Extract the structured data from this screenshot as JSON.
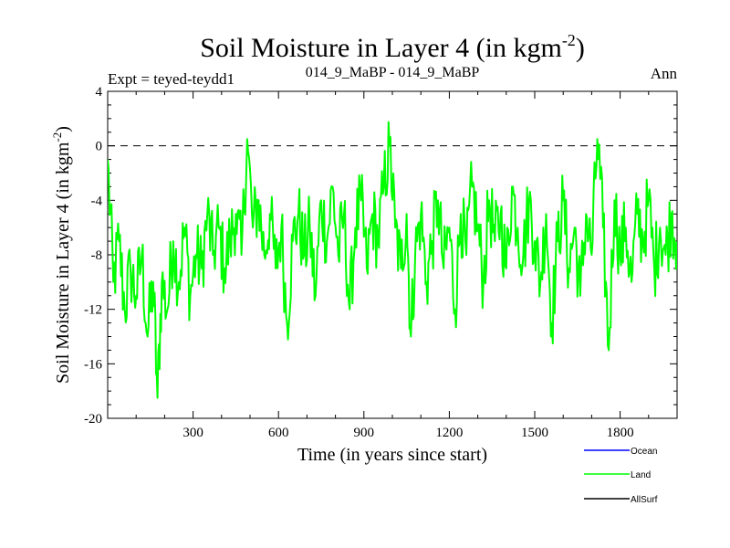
{
  "chart_data": {
    "type": "line",
    "title": "Soil Moisture in Layer 4 (in kgm",
    "title_sup": "-2",
    "title_close": ")",
    "subtitle_left": "Expt = teyed-teydd1",
    "subtitle_center": "014_9_MaBP - 014_9_MaBP",
    "subtitle_right": "Ann",
    "xlabel": "Time (in years since start)",
    "ylabel": "Soil Moisture in Layer 4 (in kgm",
    "ylabel_sup": "-2",
    "ylabel_close": ")",
    "xlim": [
      0,
      2000
    ],
    "ylim": [
      -20,
      4
    ],
    "x_ticks": [
      300,
      600,
      900,
      1200,
      1500,
      1800
    ],
    "x_tick_labels": [
      "300",
      "600",
      "900",
      "1200",
      "1500",
      "1800"
    ],
    "y_ticks": [
      4,
      0,
      -4,
      -8,
      -12,
      -16,
      -20
    ],
    "y_tick_labels": [
      "4",
      "0",
      "-4",
      "-8",
      "-12",
      "-16",
      "-20"
    ],
    "reference_line": {
      "y": 0,
      "style": "dashed"
    },
    "legend": [
      {
        "name": "Ocean",
        "color": "#0000ff"
      },
      {
        "name": "Land",
        "color": "#00ff00"
      },
      {
        "name": "AllSurf",
        "color": "#000000"
      }
    ],
    "series": [
      {
        "name": "Land",
        "color": "#00ff00",
        "x": [
          0,
          20,
          40,
          60,
          80,
          100,
          120,
          140,
          160,
          175,
          190,
          210,
          230,
          250,
          270,
          290,
          310,
          330,
          350,
          370,
          390,
          410,
          430,
          450,
          470,
          490,
          510,
          530,
          550,
          570,
          590,
          610,
          630,
          650,
          670,
          690,
          710,
          730,
          750,
          770,
          790,
          810,
          830,
          850,
          870,
          890,
          910,
          930,
          950,
          970,
          990,
          1010,
          1030,
          1050,
          1065,
          1080,
          1100,
          1120,
          1140,
          1160,
          1180,
          1200,
          1220,
          1240,
          1260,
          1280,
          1300,
          1320,
          1340,
          1360,
          1380,
          1400,
          1420,
          1440,
          1460,
          1480,
          1500,
          1520,
          1540,
          1560,
          1580,
          1600,
          1620,
          1640,
          1660,
          1680,
          1700,
          1720,
          1740,
          1760,
          1780,
          1800,
          1820,
          1840,
          1860,
          1880,
          1900,
          1920,
          1940,
          1960,
          1980,
          2000
        ],
        "values": [
          -1,
          -10,
          -7,
          -12,
          -9,
          -11,
          -8,
          -14,
          -10,
          -18.5,
          -10,
          -12,
          -7,
          -10,
          -6,
          -11,
          -8,
          -9,
          -5,
          -8,
          -6,
          -9,
          -7,
          -5,
          -8,
          0.5,
          -6,
          -4,
          -8,
          -5,
          -9,
          -6,
          -13,
          -7,
          -5,
          -8,
          -6,
          -11,
          -4,
          -7,
          -3,
          -8,
          -5,
          -12,
          -6,
          -4,
          -9,
          -5,
          -7,
          -3,
          0,
          -6,
          -9,
          -5,
          -14,
          -8,
          -5,
          -10,
          -7,
          -4,
          -9,
          -6,
          -12,
          -5,
          -8,
          -3,
          -6,
          -10,
          -4,
          -7,
          -5,
          -9,
          -3,
          -6,
          -8,
          -4,
          -7,
          -10,
          -5,
          -13,
          -7,
          -4,
          -9,
          -6,
          -11,
          -5,
          -8,
          0.5,
          -6,
          -15,
          -4,
          -8,
          -6,
          -10,
          -5,
          -7,
          -4,
          -9,
          -6,
          -8,
          -5,
          -7
        ]
      }
    ]
  }
}
